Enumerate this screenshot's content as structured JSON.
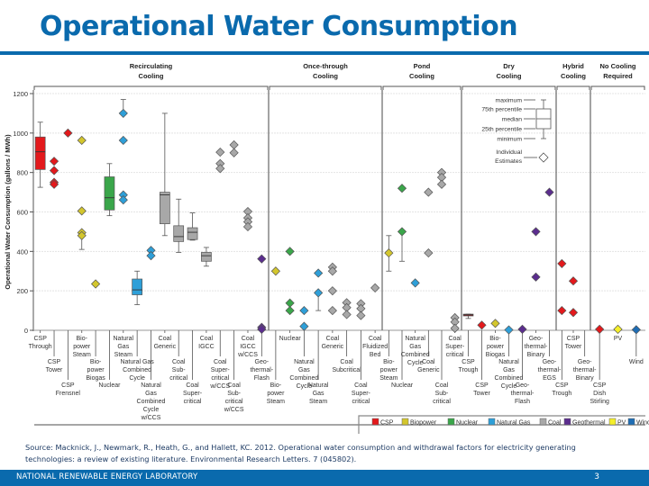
{
  "page": {
    "title": "Operational Water Consumption",
    "source_line1": "Source: Macknick, J., Newmark, R., Heath, G., and Hallett, KC. 2012. Operational water consumption and withdrawal factors for electricity generating",
    "source_line2": "technologies: a review of existing literature. Environmental Research Letters. 7 (045802).",
    "footer_org": "NATIONAL RENEWABLE ENERGY LABORATORY",
    "page_number": "3"
  },
  "chart_data": {
    "type": "box",
    "title": "Operational Water Consumption",
    "ylabel": "Operational Water Consumption (gallons / MWh)",
    "xlabel": "",
    "ylim": [
      0,
      1200
    ],
    "yticks": [
      0,
      200,
      400,
      600,
      800,
      1000,
      1200
    ],
    "grid": true,
    "legend_position": "bottom-right",
    "colors": {
      "CSP": "#e3191c",
      "Biopower": "#d3c62d",
      "Nuclear": "#3aa64a",
      "Natural Gas": "#2e9fd8",
      "Coal": "#a8a8a8",
      "Geothermal": "#5b2d8e",
      "PV": "#f5ef2a",
      "Wind": "#1f6db4"
    },
    "legend": [
      "CSP",
      "Biopower",
      "Nuclear",
      "Natural Gas",
      "Coal",
      "Geothermal",
      "PV",
      "Wind"
    ],
    "key": {
      "box_labels": [
        "maximum",
        "75th percentile",
        "median",
        "25th percentile",
        "minimum"
      ],
      "diamond_label": [
        "Individual",
        "Estimates"
      ]
    },
    "groups": [
      {
        "name": "Recirculating Cooling",
        "lines": [
          "Recirculating",
          "Cooling"
        ]
      },
      {
        "name": "Once-through Cooling",
        "lines": [
          "Once-through",
          "Cooling"
        ]
      },
      {
        "name": "Pond Cooling",
        "lines": [
          "Pond",
          "Cooling"
        ]
      },
      {
        "name": "Dry Cooling",
        "lines": [
          "Dry",
          "Cooling"
        ]
      },
      {
        "name": "Hybrid Cooling",
        "lines": [
          "Hybrid",
          "Cooling"
        ]
      },
      {
        "name": "No Cooling Required",
        "lines": [
          "No Cooling",
          "Required"
        ]
      }
    ],
    "categories": [
      {
        "group": 0,
        "label": [
          "CSP",
          "Through"
        ],
        "tech": "CSP",
        "box": {
          "min": 725,
          "q1": 815,
          "median": 905,
          "q3": 980,
          "max": 1055
        },
        "points": []
      },
      {
        "group": 0,
        "label": [
          "CSP",
          "Tower"
        ],
        "tech": "CSP",
        "box": null,
        "points": [
          857,
          810,
          750,
          740
        ]
      },
      {
        "group": 0,
        "label": [
          "CSP",
          "Frensnel"
        ],
        "tech": "CSP",
        "box": null,
        "points": [
          1000
        ]
      },
      {
        "group": 0,
        "label": [
          "Bio-",
          "power",
          "Steam"
        ],
        "tech": "Biopower",
        "box": null,
        "points": [
          963,
          605,
          495,
          480
        ],
        "whisker": [
          410,
          480
        ]
      },
      {
        "group": 0,
        "label": [
          "Bio-",
          "power",
          "Biogas"
        ],
        "tech": "Biopower",
        "box": null,
        "points": [
          235
        ]
      },
      {
        "group": 0,
        "label": [
          "Nuclear"
        ],
        "tech": "Nuclear",
        "box": {
          "min": 581,
          "q1": 610,
          "median": 672,
          "q3": 778,
          "max": 845
        },
        "points": []
      },
      {
        "group": 0,
        "label": [
          "Natural",
          "Gas",
          "Steam"
        ],
        "tech": "Natural Gas",
        "box": null,
        "points": [
          1100,
          963,
          686,
          661
        ],
        "whisker": [
          1100,
          1170
        ]
      },
      {
        "group": 0,
        "label": [
          "Natural Gas",
          "Combined",
          "Cycle"
        ],
        "tech": "Natural Gas",
        "box": {
          "min": 130,
          "q1": 180,
          "median": 205,
          "q3": 260,
          "max": 300
        },
        "points": []
      },
      {
        "group": 0,
        "label": [
          "Natural",
          "Gas",
          "Combined",
          "Cycle",
          "w/CCS"
        ],
        "tech": "Natural Gas",
        "box": null,
        "points": [
          405,
          378
        ]
      },
      {
        "group": 0,
        "label": [
          "Coal",
          "Generic"
        ],
        "tech": "Coal",
        "box": {
          "min": 480,
          "q1": 540,
          "median": 687,
          "q3": 700,
          "max": 1100
        },
        "points": []
      },
      {
        "group": 0,
        "label": [
          "Coal",
          "Sub-",
          "critical"
        ],
        "tech": "Coal",
        "box": {
          "min": 395,
          "q1": 450,
          "median": 475,
          "q3": 530,
          "max": 665
        },
        "points": []
      },
      {
        "group": 0,
        "label": [
          "Coal",
          "Super-",
          "critical"
        ],
        "tech": "Coal",
        "box": {
          "min": 457,
          "q1": 460,
          "median": 497,
          "q3": 520,
          "max": 595
        },
        "points": []
      },
      {
        "group": 0,
        "label": [
          "Coal",
          "IGCC"
        ],
        "tech": "Coal",
        "box": {
          "min": 325,
          "q1": 350,
          "median": 378,
          "q3": 395,
          "max": 420
        },
        "points": []
      },
      {
        "group": 0,
        "label": [
          "Coal",
          "Super-",
          "critical",
          "w/CCS"
        ],
        "tech": "Coal",
        "box": null,
        "points": [
          903,
          845,
          820
        ]
      },
      {
        "group": 0,
        "label": [
          "Coal",
          "Sub-",
          "critical",
          "w/CCS"
        ],
        "tech": "Coal",
        "box": null,
        "points": [
          940,
          900
        ]
      },
      {
        "group": 0,
        "label": [
          "Coal",
          "IGCC",
          "w/CCS"
        ],
        "tech": "Coal",
        "box": null,
        "points": [
          602,
          570,
          550,
          525
        ]
      },
      {
        "group": 0,
        "label": [
          "Geo-",
          "thermal-",
          "Flash"
        ],
        "tech": "Geothermal",
        "box": null,
        "points": [
          362,
          15,
          5
        ]
      },
      {
        "group": 1,
        "label": [
          "Bio-",
          "power",
          "Steam"
        ],
        "tech": "Biopower",
        "box": null,
        "points": [
          300
        ]
      },
      {
        "group": 1,
        "label": [
          "Nuclear"
        ],
        "tech": "Nuclear",
        "box": null,
        "points": [
          400,
          138,
          100
        ]
      },
      {
        "group": 1,
        "label": [
          "Natural",
          "Gas",
          "Combined",
          "Cycle"
        ],
        "tech": "Natural Gas",
        "box": null,
        "points": [
          100,
          20
        ]
      },
      {
        "group": 1,
        "label": [
          "Natural",
          "Gas",
          "Steam"
        ],
        "tech": "Natural Gas",
        "box": null,
        "points": [
          290,
          190
        ],
        "whisker": [
          100,
          190
        ]
      },
      {
        "group": 1,
        "label": [
          "Coal",
          "Generic"
        ],
        "tech": "Coal",
        "box": null,
        "points": [
          320,
          300,
          200,
          100
        ]
      },
      {
        "group": 1,
        "label": [
          "Coal",
          "Subcritical"
        ],
        "tech": "Coal",
        "box": null,
        "points": [
          140,
          115,
          80
        ]
      },
      {
        "group": 1,
        "label": [
          "Coal",
          "Super-",
          "critical"
        ],
        "tech": "Coal",
        "box": null,
        "points": [
          135,
          110,
          75
        ]
      },
      {
        "group": 1,
        "label": [
          "Coal",
          "Fluidized",
          "Bed"
        ],
        "tech": "Coal",
        "box": null,
        "points": [
          215
        ]
      },
      {
        "group": 2,
        "label": [
          "Bio-",
          "power",
          "Steam"
        ],
        "tech": "Biopower",
        "box": null,
        "points": [
          392
        ],
        "whisker": [
          300,
          480
        ]
      },
      {
        "group": 2,
        "label": [
          "Nuclear"
        ],
        "tech": "Nuclear",
        "box": null,
        "points": [
          720,
          500
        ],
        "whisker": [
          350,
          500
        ]
      },
      {
        "group": 2,
        "label": [
          "Natural",
          "Gas",
          "Combined",
          "Cycle"
        ],
        "tech": "Natural Gas",
        "box": null,
        "points": [
          240
        ]
      },
      {
        "group": 2,
        "label": [
          "Coal",
          "Generic"
        ],
        "tech": "Coal",
        "box": null,
        "points": [
          700,
          392
        ]
      },
      {
        "group": 2,
        "label": [
          "Coal",
          "Sub-",
          "critical"
        ],
        "tech": "Coal",
        "box": null,
        "points": [
          800,
          775,
          740
        ]
      },
      {
        "group": 2,
        "label": [
          "Coal",
          "Super-",
          "critical"
        ],
        "tech": "Coal",
        "box": null,
        "points": [
          64,
          42,
          10
        ]
      },
      {
        "group": 3,
        "label": [
          "CSP",
          "Trough"
        ],
        "tech": "CSP",
        "box": {
          "min": 60,
          "q1": 75,
          "median": 78,
          "q3": 82,
          "max": 82
        },
        "points": []
      },
      {
        "group": 3,
        "label": [
          "CSP",
          "Tower"
        ],
        "tech": "CSP",
        "box": null,
        "points": [
          26
        ]
      },
      {
        "group": 3,
        "label": [
          "Bio-",
          "power",
          "Biogas"
        ],
        "tech": "Biopower",
        "box": null,
        "points": [
          35
        ]
      },
      {
        "group": 3,
        "label": [
          "Natural",
          "Gas",
          "Combined",
          "Cycle"
        ],
        "tech": "Natural Gas",
        "box": null,
        "points": [
          2
        ]
      },
      {
        "group": 3,
        "label": [
          "Geo-",
          "thermal-",
          "Flash"
        ],
        "tech": "Geothermal",
        "box": null,
        "points": [
          5
        ]
      },
      {
        "group": 3,
        "label": [
          "Geo-",
          "thermal-",
          "Binary"
        ],
        "tech": "Geothermal",
        "box": null,
        "points": [
          270,
          500
        ]
      },
      {
        "group": 3,
        "label": [
          "Geo-",
          "thermal-",
          "EGS"
        ],
        "tech": "Geothermal",
        "box": null,
        "points": [
          700
        ]
      },
      {
        "group": 4,
        "label": [
          "CSP",
          "Trough"
        ],
        "tech": "CSP",
        "box": null,
        "points": [
          338,
          100
        ]
      },
      {
        "group": 4,
        "label": [
          "CSP",
          "Tower"
        ],
        "tech": "CSP",
        "box": null,
        "points": [
          250,
          90
        ]
      },
      {
        "group": 4,
        "label": [
          "Geo-",
          "thermal-",
          "Binary"
        ],
        "tech": "Geothermal",
        "box": null,
        "points": []
      },
      {
        "group": 5,
        "label": [
          "CSP",
          "Dish",
          "Stirling"
        ],
        "tech": "CSP",
        "box": null,
        "points": [
          5
        ]
      },
      {
        "group": 5,
        "label": [
          "PV"
        ],
        "tech": "PV",
        "box": null,
        "points": [
          5
        ]
      },
      {
        "group": 5,
        "label": [
          "Wind"
        ],
        "tech": "Wind",
        "box": null,
        "points": [
          3
        ]
      }
    ]
  }
}
